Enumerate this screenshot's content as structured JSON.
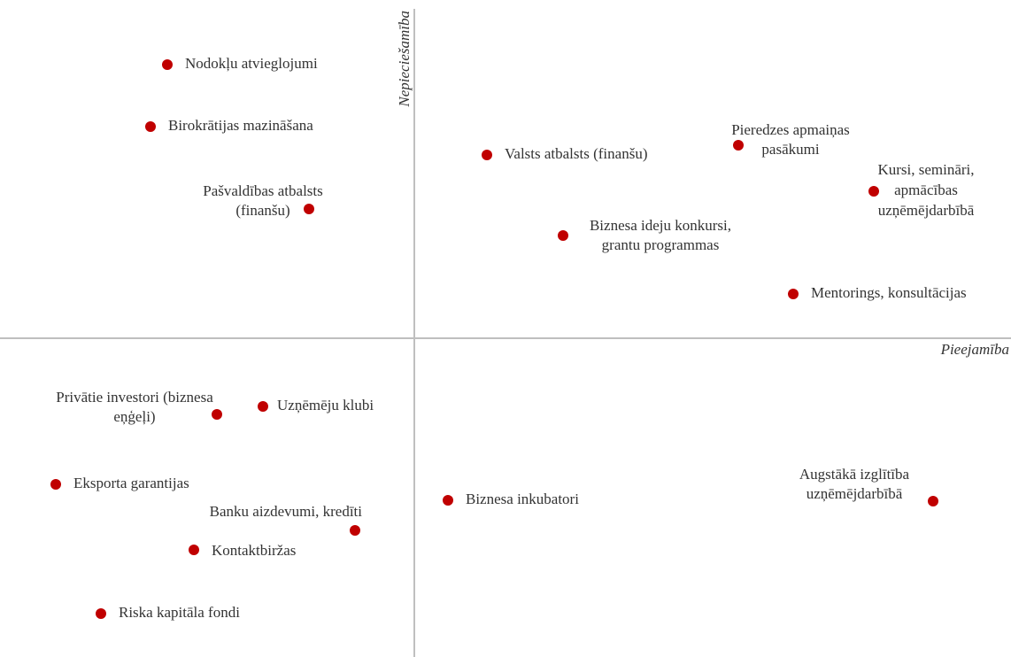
{
  "chart_data": {
    "type": "scatter",
    "x_label": "Pieejamība",
    "y_label": "Nepieciešamība",
    "color": "#c00000",
    "xlim": [
      -4.68,
      6.74
    ],
    "ylim": [
      -3.6,
      3.72
    ],
    "points": [
      {
        "label": [
          "Nodokļu atvieglojumi"
        ],
        "x": -2.79,
        "y": 3.09
      },
      {
        "label": [
          "Birokrātijas mazināšana"
        ],
        "x": -2.98,
        "y": 2.39
      },
      {
        "label": [
          "Pašvaldības atbalsts",
          "(finanšu)"
        ],
        "x": -1.19,
        "y": 1.46
      },
      {
        "label": [
          "Valsts atbalsts (finanšu)"
        ],
        "x": 0.82,
        "y": 2.07
      },
      {
        "label": [
          "Pieredzes apmaiņas",
          "pasākumi"
        ],
        "x": 3.66,
        "y": 2.18
      },
      {
        "label": [
          "Kursi, semināri,",
          "apmācības",
          "uzņēmējdarbībā"
        ],
        "x": 5.19,
        "y": 1.66
      },
      {
        "label": [
          "Biznesa ideju konkursi,",
          "grantu programmas"
        ],
        "x": 1.68,
        "y": 1.16
      },
      {
        "label": [
          "Mentorings, konsultācijas"
        ],
        "x": 4.28,
        "y": 0.5
      },
      {
        "label": [
          "Privātie investori (biznesa",
          "eņģeļi)"
        ],
        "x": -2.23,
        "y": -0.86
      },
      {
        "label": [
          "Uzņēmēju klubi"
        ],
        "x": -1.71,
        "y": -0.77
      },
      {
        "label": [
          "Eksporta garantijas"
        ],
        "x": -4.05,
        "y": -1.65
      },
      {
        "label": [
          "Banku aizdevumi, kredīti"
        ],
        "x": -0.67,
        "y": -2.17
      },
      {
        "label": [
          "Kontaktbiržas"
        ],
        "x": -2.49,
        "y": -2.39
      },
      {
        "label": [
          "Riska kapitāla fondi"
        ],
        "x": -3.54,
        "y": -3.11
      },
      {
        "label": [
          "Biznesa inkubatori"
        ],
        "x": 0.38,
        "y": -1.83
      },
      {
        "label": [
          "Augstākā izglītība",
          "uzņēmējdarbībā"
        ],
        "x": 5.86,
        "y": -1.84
      }
    ]
  }
}
